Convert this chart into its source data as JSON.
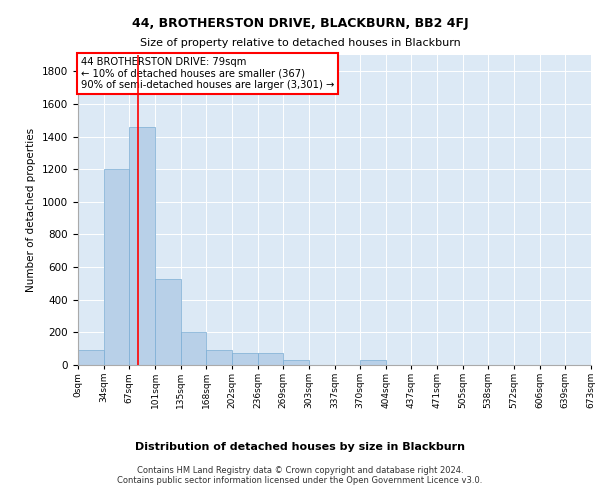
{
  "title": "44, BROTHERSTON DRIVE, BLACKBURN, BB2 4FJ",
  "subtitle": "Size of property relative to detached houses in Blackburn",
  "chart_xlabel": "Distribution of detached houses by size in Blackburn",
  "ylabel": "Number of detached properties",
  "footer_line1": "Contains HM Land Registry data © Crown copyright and database right 2024.",
  "footer_line2": "Contains public sector information licensed under the Open Government Licence v3.0.",
  "annotation_line1": "44 BROTHERSTON DRIVE: 79sqm",
  "annotation_line2": "← 10% of detached houses are smaller (367)",
  "annotation_line3": "90% of semi-detached houses are larger (3,301) →",
  "bar_color": "#b8d0e8",
  "bar_edge_color": "#7aadd4",
  "background_color": "#dce9f5",
  "red_line_x": 79,
  "bins": [
    0,
    34,
    67,
    101,
    135,
    168,
    202,
    236,
    269,
    303,
    337,
    370,
    404,
    437,
    471,
    505,
    538,
    572,
    606,
    639,
    673
  ],
  "bin_labels": [
    "0sqm",
    "34sqm",
    "67sqm",
    "101sqm",
    "135sqm",
    "168sqm",
    "202sqm",
    "236sqm",
    "269sqm",
    "303sqm",
    "337sqm",
    "370sqm",
    "404sqm",
    "437sqm",
    "471sqm",
    "505sqm",
    "538sqm",
    "572sqm",
    "606sqm",
    "639sqm",
    "673sqm"
  ],
  "bar_heights": [
    90,
    1200,
    1460,
    530,
    205,
    95,
    75,
    75,
    28,
    0,
    0,
    28,
    0,
    0,
    0,
    0,
    0,
    0,
    0,
    0
  ],
  "ylim": [
    0,
    1900
  ],
  "yticks": [
    0,
    200,
    400,
    600,
    800,
    1000,
    1200,
    1400,
    1600,
    1800
  ]
}
